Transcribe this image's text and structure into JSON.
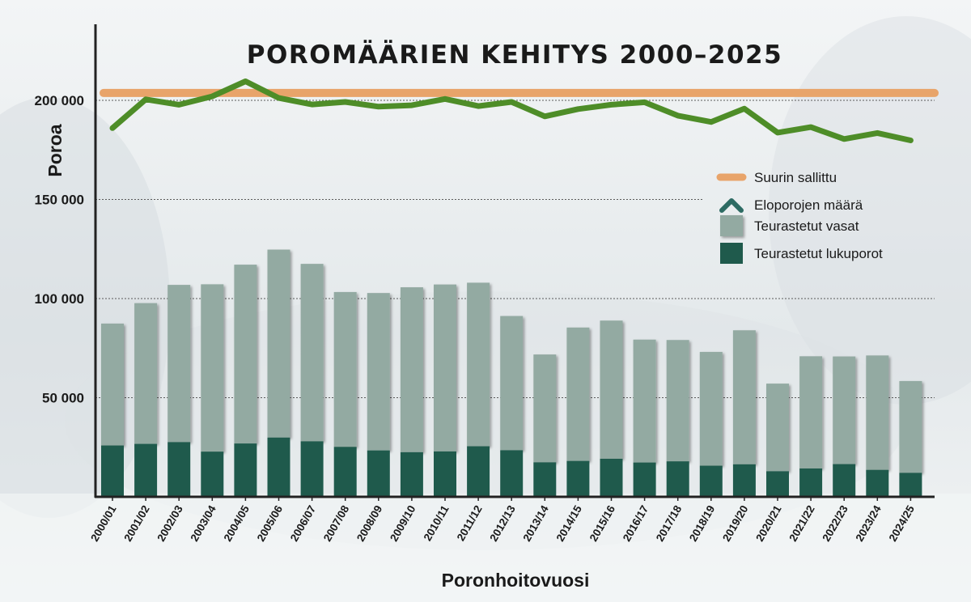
{
  "chart_data": {
    "type": "bar",
    "title": "POROMÄÄRIEN KEHITYS 2000–2025",
    "xlabel": "Poronhoitovuosi",
    "ylabel": "Poroa",
    "ylim": [
      0,
      210000
    ],
    "yticks": [
      {
        "value": 50000,
        "label": "50 000"
      },
      {
        "value": 100000,
        "label": "100 000"
      },
      {
        "value": 150000,
        "label": "150 000"
      },
      {
        "value": 200000,
        "label": "200 000"
      }
    ],
    "grid": true,
    "legend_position": "right",
    "categories": [
      "2000/01",
      "2001/02",
      "2002/03",
      "2003/04",
      "2004/05",
      "2005/06",
      "2006/07",
      "2007/08",
      "2008/09",
      "2009/10",
      "2010/11",
      "2011/12",
      "2012/13",
      "2013/14",
      "2014/15",
      "2015/16",
      "2016/17",
      "2017/18",
      "2018/19",
      "2019/20",
      "2020/21",
      "2021/22",
      "2022/23",
      "2023/24",
      "2024/25"
    ],
    "series": [
      {
        "name": "Suurin sallittu",
        "kind": "line",
        "color": "#e8a46a",
        "values": [
          203700,
          203700,
          203700,
          203700,
          203700,
          203700,
          203700,
          203700,
          203700,
          203700,
          203700,
          203700,
          203700,
          203700,
          203700,
          203700,
          203700,
          203700,
          203700,
          203700,
          203700,
          203700,
          203700,
          203700,
          203700
        ]
      },
      {
        "name": "Eloporojen määrä",
        "kind": "line",
        "color": "#4e8d28",
        "values": [
          186000,
          200500,
          197800,
          202000,
          209600,
          201200,
          197900,
          199200,
          196800,
          197500,
          200700,
          197100,
          199200,
          191900,
          195600,
          197800,
          199000,
          192300,
          189100,
          195800,
          183700,
          186500,
          180500,
          183500,
          179800
        ]
      },
      {
        "name": "Teurastetut vasat",
        "kind": "stacked-bar",
        "color": "#93aaa2",
        "values": [
          61500,
          71000,
          79300,
          84400,
          90200,
          94800,
          89500,
          78100,
          79400,
          83200,
          84200,
          82500,
          67700,
          54400,
          67300,
          69700,
          62000,
          61200,
          57400,
          67600,
          44200,
          56600,
          54300,
          57700,
          46300
        ]
      },
      {
        "name": "Teurastetut lukuporot",
        "kind": "stacked-bar",
        "color": "#1f5a4c",
        "values": [
          25900,
          26700,
          27600,
          22800,
          26900,
          29900,
          28000,
          25200,
          23400,
          22500,
          22900,
          25500,
          23500,
          17400,
          18100,
          19200,
          17300,
          17900,
          15700,
          16400,
          12900,
          14300,
          16500,
          13600,
          12100
        ]
      }
    ]
  }
}
